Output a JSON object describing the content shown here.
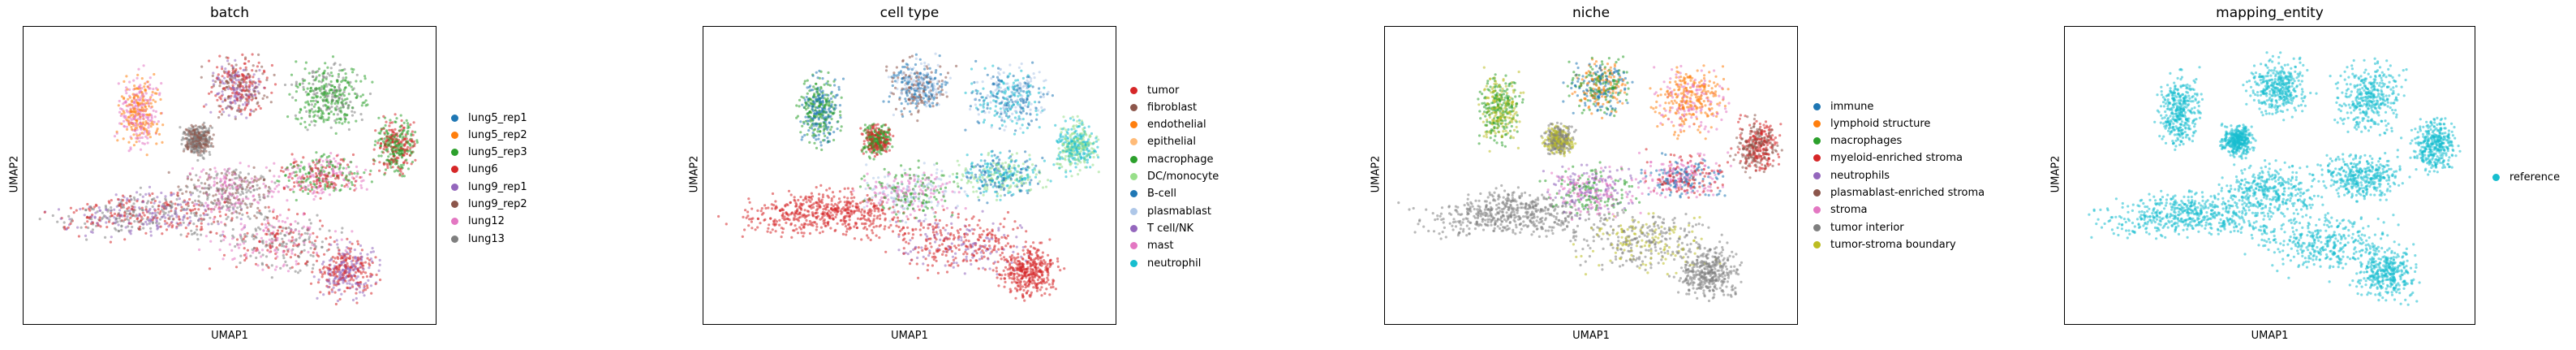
{
  "chart_data": [
    {
      "type": "scatter",
      "title": "batch",
      "xlabel": "UMAP1",
      "ylabel": "UMAP2",
      "grid": false,
      "legend_position": "right",
      "series": [
        {
          "name": "lung5_rep1",
          "color": "#1f77b4"
        },
        {
          "name": "lung5_rep2",
          "color": "#ff7f0e"
        },
        {
          "name": "lung5_rep3",
          "color": "#2ca02c"
        },
        {
          "name": "lung6",
          "color": "#d62728"
        },
        {
          "name": "lung9_rep1",
          "color": "#9467bd"
        },
        {
          "name": "lung9_rep2",
          "color": "#8c564b"
        },
        {
          "name": "lung12",
          "color": "#e377c2"
        },
        {
          "name": "lung13",
          "color": "#7f7f7f"
        }
      ]
    },
    {
      "type": "scatter",
      "title": "cell type",
      "xlabel": "UMAP1",
      "ylabel": "UMAP2",
      "grid": false,
      "legend_position": "right",
      "series": [
        {
          "name": "tumor",
          "color": "#d62728"
        },
        {
          "name": "fibroblast",
          "color": "#8c564b"
        },
        {
          "name": "endothelial",
          "color": "#ff7f0e"
        },
        {
          "name": "epithelial",
          "color": "#ffbb78"
        },
        {
          "name": "macrophage",
          "color": "#2ca02c"
        },
        {
          "name": "DC/monocyte",
          "color": "#98df8a"
        },
        {
          "name": "B-cell",
          "color": "#1f77b4"
        },
        {
          "name": "plasmablast",
          "color": "#aec7e8"
        },
        {
          "name": "T cell/NK",
          "color": "#9467bd"
        },
        {
          "name": "mast",
          "color": "#e377c2"
        },
        {
          "name": "neutrophil",
          "color": "#17becf"
        }
      ]
    },
    {
      "type": "scatter",
      "title": "niche",
      "xlabel": "UMAP1",
      "ylabel": "UMAP2",
      "grid": false,
      "legend_position": "right",
      "series": [
        {
          "name": "immune",
          "color": "#1f77b4"
        },
        {
          "name": "lymphoid structure",
          "color": "#ff7f0e"
        },
        {
          "name": "macrophages",
          "color": "#2ca02c"
        },
        {
          "name": "myeloid-enriched stroma",
          "color": "#d62728"
        },
        {
          "name": "neutrophils",
          "color": "#9467bd"
        },
        {
          "name": "plasmablast-enriched stroma",
          "color": "#8c564b"
        },
        {
          "name": "stroma",
          "color": "#e377c2"
        },
        {
          "name": "tumor interior",
          "color": "#7f7f7f"
        },
        {
          "name": "tumor-stroma boundary",
          "color": "#bcbd22"
        }
      ]
    },
    {
      "type": "scatter",
      "title": "mapping_entity",
      "xlabel": "UMAP1",
      "ylabel": "UMAP2",
      "grid": false,
      "legend_position": "right",
      "series": [
        {
          "name": "reference",
          "color": "#17becf"
        }
      ]
    }
  ]
}
